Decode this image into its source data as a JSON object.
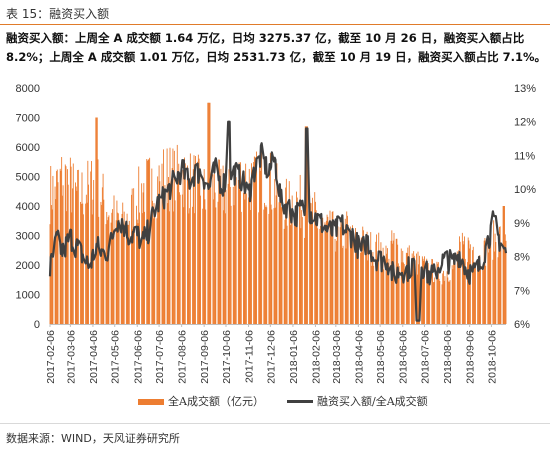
{
  "header": {
    "title": "表 15：融资买入额"
  },
  "summary": "融资买入额：上周全 A 成交额 1.64 万亿，日均 3275.37 亿，截至 10 月 26 日，融资买入额占比 8.2%；上周全 A 成交额 1.01 万亿，日均 2531.73 亿，截至 10 月 19 日，融资买入额占比 7.1%。",
  "footer": {
    "source": "数据来源：WIND，天风证券研究所"
  },
  "colors": {
    "bar": "#ED7D31",
    "line": "#404040",
    "accent": "#E07B2A"
  },
  "chart_data": {
    "type": "bar",
    "x_tick_labels": [
      "2017-02-06",
      "2017-03-06",
      "2017-04-06",
      "2017-05-06",
      "2017-06-06",
      "2017-07-06",
      "2017-08-06",
      "2017-09-06",
      "2017-10-06",
      "2017-11-06",
      "2017-12-06",
      "2018-01-06",
      "2018-02-06",
      "2018-03-06",
      "2018-04-06",
      "2018-05-06",
      "2018-06-06",
      "2018-07-06",
      "2018-08-06",
      "2018-09-06",
      "2018-10-06"
    ],
    "y_left": {
      "min": 0,
      "max": 8000,
      "ticks": [
        "0",
        "1000",
        "2000",
        "3000",
        "4000",
        "5000",
        "6000",
        "7000",
        "8000"
      ]
    },
    "y_right": {
      "min": 6,
      "max": 13,
      "ticks": [
        "6%",
        "7%",
        "8%",
        "9%",
        "10%",
        "11%",
        "12%",
        "13%"
      ]
    },
    "grid": false,
    "legend_position": "bottom",
    "series": [
      {
        "name": "全A成交额（亿元）",
        "type": "bar",
        "axis": "left",
        "x_start": "2017-02-06",
        "x_end": "2018-10-26",
        "trend": [
          4700,
          4900,
          5300,
          5000,
          4600,
          4700,
          4900,
          5100,
          4500,
          4000,
          3800,
          3600,
          3900,
          4400,
          4800,
          5000,
          4900,
          5300,
          5300,
          5200,
          5400,
          5100,
          5100,
          4700,
          4700,
          4900,
          4700,
          4900,
          5100,
          5200,
          5200,
          5000,
          5300,
          5200,
          4800,
          4400,
          4200,
          4500,
          4300,
          3800,
          3900,
          3500,
          3300,
          3300,
          3100,
          3400,
          2900,
          3000,
          2800,
          2700,
          2700,
          2400,
          2900,
          2600,
          2400,
          2300,
          2100,
          2000,
          1900,
          1800,
          1900,
          2000,
          2600,
          2800,
          2800,
          2300,
          2700,
          3000,
          3100,
          3300
        ],
        "peaks": [
          {
            "date": "2017-04-10",
            "value": 7000
          },
          {
            "date": "2017-09-12",
            "value": 7500
          },
          {
            "date": "2018-01-25",
            "value": 6700
          },
          {
            "date": "2018-10-22",
            "value": 4000
          }
        ]
      },
      {
        "name": "融资买入额/全A成交额",
        "type": "line",
        "axis": "right",
        "x_start": "2017-02-06",
        "x_end": "2018-10-26",
        "trend": [
          7.6,
          8.5,
          8.1,
          8.6,
          8.3,
          8.0,
          7.7,
          8.3,
          8.1,
          8.2,
          9.1,
          9.0,
          8.6,
          8.7,
          8.4,
          8.8,
          9.5,
          9.7,
          10.0,
          10.3,
          10.6,
          10.2,
          10.5,
          10.5,
          10.0,
          10.6,
          10.1,
          10.4,
          10.5,
          10.3,
          9.8,
          10.6,
          11.0,
          10.5,
          10.9,
          9.6,
          9.5,
          9.2,
          9.4,
          9.4,
          9.2,
          9.0,
          8.8,
          8.7,
          9.0,
          8.7,
          8.6,
          8.1,
          8.5,
          8.0,
          7.9,
          7.9,
          7.4,
          7.6,
          7.6,
          7.8,
          7.9,
          7.5,
          7.4,
          7.8,
          7.9,
          7.8,
          8.1,
          7.6,
          7.5,
          7.7,
          8.3,
          9.0,
          8.5,
          8.1
        ],
        "peaks": [
          {
            "date": "2017-10-09",
            "value": 12.0
          },
          {
            "date": "2018-01-26",
            "value": 11.8
          },
          {
            "date": "2018-06-27",
            "value": 6.1
          },
          {
            "date": "2018-10-12",
            "value": 9.2
          }
        ]
      }
    ]
  }
}
